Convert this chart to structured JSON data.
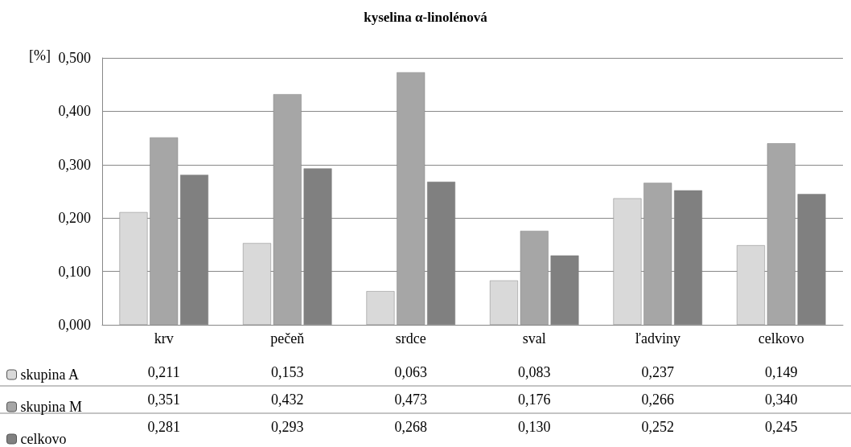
{
  "chart_data": {
    "type": "bar",
    "title": "kyselina α-linolénová",
    "ylabel": "[%]",
    "categories": [
      "krv",
      "pečeň",
      "srdce",
      "sval",
      "ľadviny",
      "celkovo"
    ],
    "series": [
      {
        "name": "skupina A",
        "color": "#d9d9d9",
        "values": [
          0.211,
          0.153,
          0.063,
          0.083,
          0.237,
          0.149
        ],
        "value_labels": [
          "0,211",
          "0,153",
          "0,063",
          "0,083",
          "0,237",
          "0,149"
        ]
      },
      {
        "name": "skupina M",
        "color": "#a6a6a6",
        "values": [
          0.351,
          0.432,
          0.473,
          0.176,
          0.266,
          0.34
        ],
        "value_labels": [
          "0,351",
          "0,432",
          "0,473",
          "0,176",
          "0,266",
          "0,340"
        ]
      },
      {
        "name": "celkovo",
        "color": "#808080",
        "values": [
          0.281,
          0.293,
          0.268,
          0.13,
          0.252,
          0.245
        ],
        "value_labels": [
          "0,281",
          "0,293",
          "0,268",
          "0,130",
          "0,252",
          "0,245"
        ]
      }
    ],
    "ylim": [
      0,
      0.5
    ],
    "yticks": [
      {
        "value": 0,
        "label": "0,000"
      },
      {
        "value": 0.1,
        "label": "0,100"
      },
      {
        "value": 0.2,
        "label": "0,200"
      },
      {
        "value": 0.3,
        "label": "0,300"
      },
      {
        "value": 0.4,
        "label": "0,400"
      },
      {
        "value": 0.5,
        "label": "0,500"
      }
    ],
    "grid": "y",
    "legend": "bottom"
  }
}
